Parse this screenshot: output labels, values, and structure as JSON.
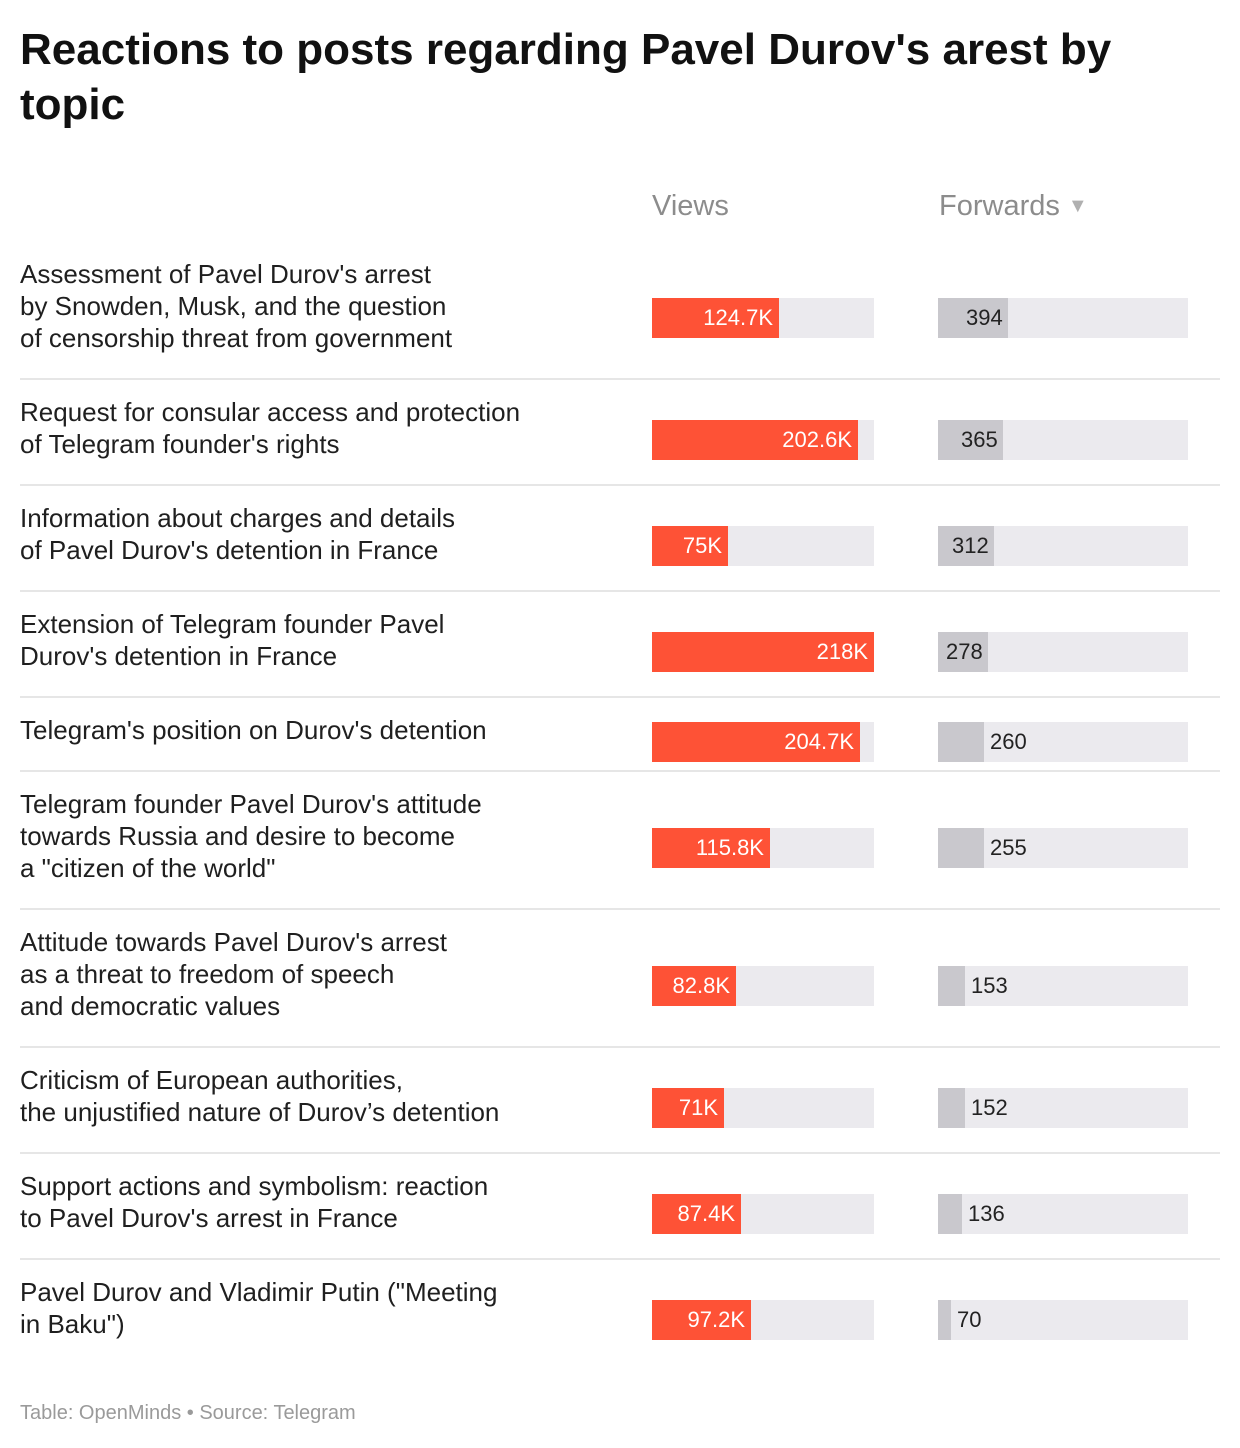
{
  "chart_data": {
    "type": "table",
    "title": "Reactions to posts regarding Pavel Durov's arest by topic",
    "columns": [
      "Views",
      "Forwards"
    ],
    "sort_indicator": "▼",
    "views_max": 218000,
    "forwards_max": 1400,
    "rows": [
      {
        "topic": "Assessment of Pavel Durov's arrest\nby Snowden, Musk, and the question\nof censorship threat from government",
        "views": 124700,
        "views_label": "124.7K",
        "forwards": 394,
        "forwards_label": "394"
      },
      {
        "topic": "Request for consular access and protection\nof Telegram founder's rights",
        "views": 202600,
        "views_label": "202.6K",
        "forwards": 365,
        "forwards_label": "365"
      },
      {
        "topic": "Information about charges and details\nof Pavel Durov's detention in France",
        "views": 75000,
        "views_label": "75K",
        "forwards": 312,
        "forwards_label": "312"
      },
      {
        "topic": "Extension of Telegram founder Pavel\nDurov's detention in France",
        "views": 218000,
        "views_label": "218K",
        "forwards": 278,
        "forwards_label": "278"
      },
      {
        "topic": "Telegram's position on Durov's detention",
        "views": 204700,
        "views_label": "204.7K",
        "forwards": 260,
        "forwards_label": "260"
      },
      {
        "topic": "Telegram founder Pavel Durov's attitude\ntowards Russia and desire to become\na \"citizen of the world\"",
        "views": 115800,
        "views_label": "115.8K",
        "forwards": 255,
        "forwards_label": "255"
      },
      {
        "topic": "Attitude towards Pavel Durov's arrest\nas a threat to freedom of speech\nand democratic values",
        "views": 82800,
        "views_label": "82.8K",
        "forwards": 153,
        "forwards_label": "153"
      },
      {
        "topic": "Criticism of European authorities,\nthe unjustified nature of Durov’s detention",
        "views": 71000,
        "views_label": "71K",
        "forwards": 152,
        "forwards_label": "152"
      },
      {
        "topic": "Support actions and symbolism: reaction\nto Pavel Durov's arrest in France",
        "views": 87400,
        "views_label": "87.4K",
        "forwards": 136,
        "forwards_label": "136"
      },
      {
        "topic": "Pavel Durov and Vladimir Putin (\"Meeting\nin Baku\")",
        "views": 97200,
        "views_label": "97.2K",
        "forwards": 70,
        "forwards_label": "70"
      }
    ]
  },
  "footer": "Table: OpenMinds • Source: Telegram",
  "colors": {
    "views_bar": "#fe5236",
    "forwards_bar": "#c9c8cd",
    "track": "#ebeaee"
  }
}
